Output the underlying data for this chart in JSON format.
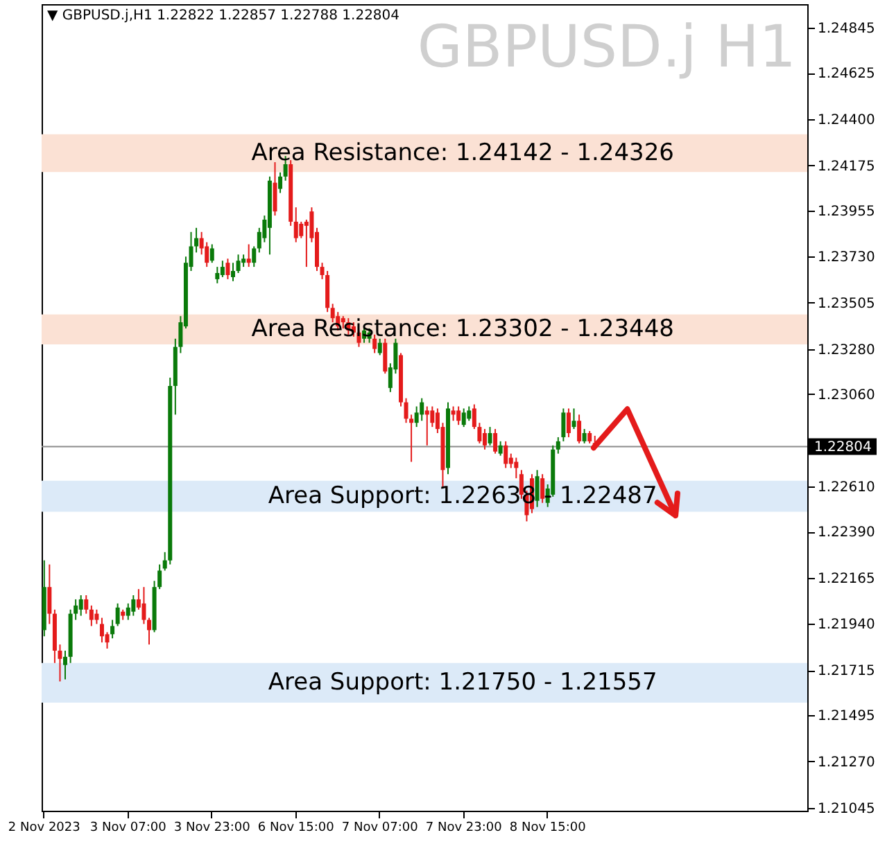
{
  "chart_data": {
    "type": "candlestick",
    "title": "GBPUSD.j H1",
    "annotations": [
      "▼ GBPUSD.j,H1  1.22822 1.22857 1.22788 1.22804"
    ],
    "categories": [
      "2 Nov 2023",
      null,
      null,
      null,
      null,
      null,
      null,
      null,
      null,
      null,
      null,
      null,
      null,
      null,
      null,
      null,
      "3 Nov 07:00",
      null,
      null,
      null,
      null,
      null,
      null,
      null,
      null,
      null,
      null,
      null,
      null,
      null,
      null,
      null,
      "3 Nov 23:00",
      null,
      null,
      null,
      null,
      null,
      null,
      null,
      null,
      null,
      null,
      null,
      null,
      null,
      null,
      null,
      "6 Nov 15:00",
      null,
      null,
      null,
      null,
      null,
      null,
      null,
      null,
      null,
      null,
      null,
      null,
      null,
      null,
      null,
      "7 Nov 07:00",
      null,
      null,
      null,
      null,
      null,
      null,
      null,
      null,
      null,
      null,
      null,
      null,
      null,
      null,
      null,
      "7 Nov 23:00",
      null,
      null,
      null,
      null,
      null,
      null,
      null,
      null,
      null,
      null,
      null,
      null,
      null,
      null,
      null,
      "8 Nov 15:00",
      null,
      null,
      null,
      null,
      null,
      null,
      null,
      null,
      null,
      null,
      null,
      null,
      null,
      null,
      null,
      null,
      null,
      null,
      null,
      null,
      null,
      null,
      null,
      null,
      null,
      null,
      null,
      null,
      null,
      null,
      null,
      null,
      null,
      null,
      null,
      null,
      null,
      null,
      null,
      null,
      null,
      null,
      null,
      null,
      null,
      null,
      null,
      null,
      null
    ],
    "ohlc": [
      [
        1.2191,
        1.2225,
        1.2188,
        1.2212
      ],
      [
        1.2212,
        1.2223,
        1.2194,
        1.2199
      ],
      [
        1.2199,
        1.2201,
        1.2175,
        1.2181
      ],
      [
        1.2181,
        1.2184,
        1.2166,
        1.2177
      ],
      [
        1.2174,
        1.2181,
        1.2167,
        1.2178
      ],
      [
        1.2178,
        1.2201,
        1.2175,
        1.2199
      ],
      [
        1.2199,
        1.2206,
        1.2196,
        1.2203
      ],
      [
        1.2201,
        1.2208,
        1.2198,
        1.2206
      ],
      [
        1.2206,
        1.2208,
        1.2199,
        1.2201
      ],
      [
        1.2201,
        1.2203,
        1.2193,
        1.2196
      ],
      [
        1.2199,
        1.2201,
        1.2194,
        1.2196
      ],
      [
        1.2194,
        1.2197,
        1.2185,
        1.2188
      ],
      [
        1.2189,
        1.219,
        1.2182,
        1.2185
      ],
      [
        1.2189,
        1.2196,
        1.2187,
        1.2193
      ],
      [
        1.2194,
        1.2204,
        1.2193,
        1.2202
      ],
      [
        1.22,
        1.2201,
        1.2196,
        1.2198
      ],
      [
        1.2198,
        1.2204,
        1.2196,
        1.2202
      ],
      [
        1.22,
        1.2208,
        1.2198,
        1.2206
      ],
      [
        1.2206,
        1.2211,
        1.2201,
        1.2202
      ],
      [
        1.2204,
        1.2212,
        1.2194,
        1.2196
      ],
      [
        1.2196,
        1.2197,
        1.2184,
        1.2191
      ],
      [
        1.2191,
        1.2215,
        1.219,
        1.2212
      ],
      [
        1.2212,
        1.2223,
        1.2211,
        1.222
      ],
      [
        1.2221,
        1.2229,
        1.222,
        1.2225
      ],
      [
        1.2225,
        1.2314,
        1.2223,
        1.231
      ],
      [
        1.231,
        1.2333,
        1.2296,
        1.2329
      ],
      [
        1.2329,
        1.2344,
        1.2326,
        1.2341
      ],
      [
        1.2339,
        1.2373,
        1.2338,
        1.237
      ],
      [
        1.2368,
        1.2385,
        1.2366,
        1.2378
      ],
      [
        1.2378,
        1.2387,
        1.2375,
        1.2382
      ],
      [
        1.2382,
        1.2385,
        1.2374,
        1.2377
      ],
      [
        1.2378,
        1.238,
        1.2368,
        1.237
      ],
      [
        1.2371,
        1.2379,
        1.237,
        1.2377
      ],
      [
        1.2362,
        1.2368,
        1.236,
        1.2365
      ],
      [
        1.2364,
        1.2371,
        1.2363,
        1.2368
      ],
      [
        1.237,
        1.2372,
        1.2362,
        1.2364
      ],
      [
        1.2363,
        1.237,
        1.2361,
        1.2366
      ],
      [
        1.2366,
        1.2374,
        1.2365,
        1.2371
      ],
      [
        1.237,
        1.2374,
        1.2368,
        1.2372
      ],
      [
        1.2372,
        1.2379,
        1.2368,
        1.237
      ],
      [
        1.237,
        1.2378,
        1.2368,
        1.2377
      ],
      [
        1.2377,
        1.2387,
        1.2375,
        1.2385
      ],
      [
        1.2382,
        1.2393,
        1.238,
        1.2391
      ],
      [
        1.2387,
        1.2412,
        1.2374,
        1.241
      ],
      [
        1.2409,
        1.2419,
        1.2393,
        1.2395
      ],
      [
        1.2406,
        1.2414,
        1.2404,
        1.2412
      ],
      [
        1.2412,
        1.2422,
        1.241,
        1.2418
      ],
      [
        1.2418,
        1.242,
        1.2388,
        1.239
      ],
      [
        1.239,
        1.2397,
        1.238,
        1.2382
      ],
      [
        1.2389,
        1.239,
        1.2382,
        1.2383
      ],
      [
        1.239,
        1.2391,
        1.2368,
        1.2388
      ],
      [
        1.2395,
        1.2397,
        1.238,
        1.2382
      ],
      [
        1.2385,
        1.2387,
        1.2366,
        1.2368
      ],
      [
        1.2368,
        1.237,
        1.2362,
        1.2364
      ],
      [
        1.2364,
        1.2366,
        1.2346,
        1.2348
      ],
      [
        1.2348,
        1.235,
        1.2341,
        1.2343
      ],
      [
        1.2344,
        1.2346,
        1.2337,
        1.2339
      ],
      [
        1.2343,
        1.2344,
        1.2338,
        1.2341
      ],
      [
        1.2341,
        1.2343,
        1.2335,
        1.2337
      ],
      [
        1.2339,
        1.2341,
        1.2334,
        1.2336
      ],
      [
        1.2336,
        1.2337,
        1.2329,
        1.2331
      ],
      [
        1.2333,
        1.2339,
        1.2331,
        1.2337
      ],
      [
        1.2333,
        1.2338,
        1.2331,
        1.2336
      ],
      [
        1.2333,
        1.2335,
        1.2326,
        1.2328
      ],
      [
        1.2326,
        1.2333,
        1.2325,
        1.2331
      ],
      [
        1.2331,
        1.2333,
        1.2316,
        1.2317
      ],
      [
        1.2309,
        1.2321,
        1.2307,
        1.2319
      ],
      [
        1.2318,
        1.2333,
        1.2316,
        1.2331
      ],
      [
        1.2325,
        1.2326,
        1.23,
        1.2302
      ],
      [
        1.2302,
        1.2304,
        1.2292,
        1.2294
      ],
      [
        1.2294,
        1.2296,
        1.2273,
        1.2292
      ],
      [
        1.2292,
        1.23,
        1.229,
        1.2297
      ],
      [
        1.2296,
        1.2304,
        1.2293,
        1.2302
      ],
      [
        1.2298,
        1.23,
        1.2281,
        1.2296
      ],
      [
        1.2298,
        1.23,
        1.229,
        1.2292
      ],
      [
        1.2297,
        1.2299,
        1.2287,
        1.2289
      ],
      [
        1.229,
        1.2292,
        1.226,
        1.2269
      ],
      [
        1.227,
        1.2302,
        1.2267,
        1.2299
      ],
      [
        1.2298,
        1.23,
        1.2293,
        1.2296
      ],
      [
        1.2298,
        1.23,
        1.2291,
        1.2293
      ],
      [
        1.2291,
        1.2299,
        1.229,
        1.2297
      ],
      [
        1.2294,
        1.23,
        1.2293,
        1.2298
      ],
      [
        1.2299,
        1.2301,
        1.2289,
        1.229
      ],
      [
        1.229,
        1.2292,
        1.2282,
        1.2283
      ],
      [
        1.2287,
        1.2289,
        1.2279,
        1.2281
      ],
      [
        1.2282,
        1.229,
        1.2281,
        1.2287
      ],
      [
        1.2287,
        1.2289,
        1.2277,
        1.2278
      ],
      [
        1.2277,
        1.2283,
        1.2276,
        1.2281
      ],
      [
        1.2281,
        1.2283,
        1.227,
        1.2272
      ],
      [
        1.2275,
        1.2277,
        1.227,
        1.2272
      ],
      [
        1.2273,
        1.2275,
        1.2265,
        1.227
      ],
      [
        1.2267,
        1.2269,
        1.2255,
        1.2257
      ],
      [
        1.2257,
        1.2259,
        1.2244,
        1.2247
      ],
      [
        1.2265,
        1.2267,
        1.2248,
        1.225
      ],
      [
        1.2254,
        1.2269,
        1.2251,
        1.2266
      ],
      [
        1.2265,
        1.2267,
        1.2253,
        1.2255
      ],
      [
        1.2253,
        1.2262,
        1.2251,
        1.226
      ],
      [
        1.2257,
        1.2281,
        1.2256,
        1.2279
      ],
      [
        1.2279,
        1.2285,
        1.2277,
        1.2283
      ],
      [
        1.2285,
        1.2299,
        1.2283,
        1.2297
      ],
      [
        1.2297,
        1.2299,
        1.2285,
        1.2287
      ],
      [
        1.229,
        1.2299,
        1.2289,
        1.2293
      ],
      [
        1.2293,
        1.2296,
        1.2282,
        1.2283
      ],
      [
        1.2283,
        1.2289,
        1.2282,
        1.2287
      ],
      [
        1.2287,
        1.2288,
        1.2282,
        1.2283
      ],
      [
        1.22822,
        1.22857,
        1.22788,
        1.22804
      ],
      null,
      null,
      null,
      null,
      null,
      null,
      null,
      null,
      null,
      null,
      null,
      null,
      null,
      null,
      null,
      null,
      null,
      null,
      null,
      null,
      null,
      null,
      null,
      null,
      null,
      null,
      null,
      null,
      null,
      null,
      null,
      null,
      null,
      null,
      null,
      null,
      null,
      null,
      null,
      null
    ],
    "colors": [
      "#0a7a0a",
      "#e41b1b",
      "#e41b1b",
      "#e41b1b",
      "#0a7a0a",
      "#0a7a0a",
      "#0a7a0a",
      "#0a7a0a",
      "#e41b1b",
      "#e41b1b",
      "#e41b1b",
      "#e41b1b",
      "#e41b1b",
      "#0a7a0a",
      "#0a7a0a",
      "#e41b1b",
      "#0a7a0a",
      "#0a7a0a",
      "#e41b1b",
      "#e41b1b",
      "#e41b1b",
      "#0a7a0a",
      "#0a7a0a",
      "#0a7a0a",
      "#0a7a0a",
      "#0a7a0a",
      "#0a7a0a",
      "#0a7a0a",
      "#0a7a0a",
      "#0a7a0a",
      "#e41b1b",
      "#e41b1b",
      "#0a7a0a",
      "#0a7a0a",
      "#0a7a0a",
      "#e41b1b",
      "#0a7a0a",
      "#0a7a0a",
      "#0a7a0a",
      "#e41b1b",
      "#0a7a0a",
      "#0a7a0a",
      "#0a7a0a",
      "#0a7a0a",
      "#e41b1b",
      "#0a7a0a",
      "#0a7a0a",
      "#e41b1b",
      "#e41b1b",
      "#e41b1b",
      "#e41b1b",
      "#e41b1b",
      "#e41b1b",
      "#e41b1b",
      "#e41b1b",
      "#e41b1b",
      "#e41b1b",
      "#e41b1b",
      "#e41b1b",
      "#e41b1b",
      "#e41b1b",
      "#0a7a0a",
      "#0a7a0a",
      "#e41b1b",
      "#0a7a0a",
      "#e41b1b",
      "#0a7a0a",
      "#0a7a0a",
      "#e41b1b",
      "#e41b1b",
      "#e41b1b",
      "#0a7a0a",
      "#0a7a0a",
      "#e41b1b",
      "#e41b1b",
      "#e41b1b",
      "#e41b1b",
      "#0a7a0a",
      "#e41b1b",
      "#e41b1b",
      "#0a7a0a",
      "#0a7a0a",
      "#e41b1b",
      "#e41b1b",
      "#e41b1b",
      "#0a7a0a",
      "#e41b1b",
      "#0a7a0a",
      "#e41b1b",
      "#e41b1b",
      "#e41b1b",
      "#e41b1b",
      "#e41b1b",
      "#e41b1b",
      "#0a7a0a",
      "#e41b1b",
      "#0a7a0a",
      "#0a7a0a",
      "#0a7a0a",
      "#0a7a0a",
      "#e41b1b",
      "#0a7a0a",
      "#e41b1b",
      "#0a7a0a",
      "#e41b1b",
      "#e41b1b",
      null,
      null,
      null,
      null,
      null,
      null,
      null,
      null,
      null,
      null,
      null,
      null,
      null,
      null,
      null,
      null,
      null,
      null,
      null,
      null,
      null,
      null,
      null,
      null,
      null,
      null,
      null,
      null,
      null,
      null,
      null,
      null,
      null,
      null,
      null,
      null,
      null,
      null,
      null,
      null
    ],
    "ylim": [
      1.2103,
      1.2496
    ],
    "yticks": [
      1.24845,
      1.24625,
      {
        "value": 1.244,
        "label": "1.24400"
      },
      1.24175,
      1.23955,
      {
        "value": 1.2373,
        "label": "1.23730"
      },
      1.23505,
      {
        "value": 1.2328,
        "label": "1.23280"
      },
      {
        "value": 1.2306,
        "label": "1.23060"
      },
      {
        "value": 1.22835,
        "label": null
      },
      {
        "value": 1.2261,
        "label": "1.22610"
      },
      {
        "value": 1.2239,
        "label": "1.22390"
      },
      1.22165,
      {
        "value": 1.2194,
        "label": "1.21940"
      },
      1.21715,
      1.21495,
      {
        "value": 1.2127,
        "label": "1.21270"
      },
      1.21045
    ],
    "bands": [
      {
        "axis": "y",
        "from": 1.24142,
        "to": 1.24326,
        "label": "Area Resistance: 1.24142 - 1.24326",
        "color": "#fbe1d4"
      },
      {
        "axis": "y",
        "from": 1.23302,
        "to": 1.23448,
        "label": "Area Resistance: 1.23302 - 1.23448",
        "color": "#fbe1d4"
      },
      {
        "axis": "y",
        "from": 1.22487,
        "to": 1.22638,
        "label": "Area Support: 1.22638 - 1.22487",
        "color": "#dceaf8"
      },
      {
        "axis": "y",
        "from": 1.21557,
        "to": 1.2175,
        "label": "Area Support: 1.21750 - 1.21557",
        "color": "#dceaf8"
      }
    ],
    "ref_lines": [
      {
        "axis": "y",
        "value": 1.22804,
        "label": "1.22804",
        "color": "#8c8c8c"
      }
    ]
  }
}
